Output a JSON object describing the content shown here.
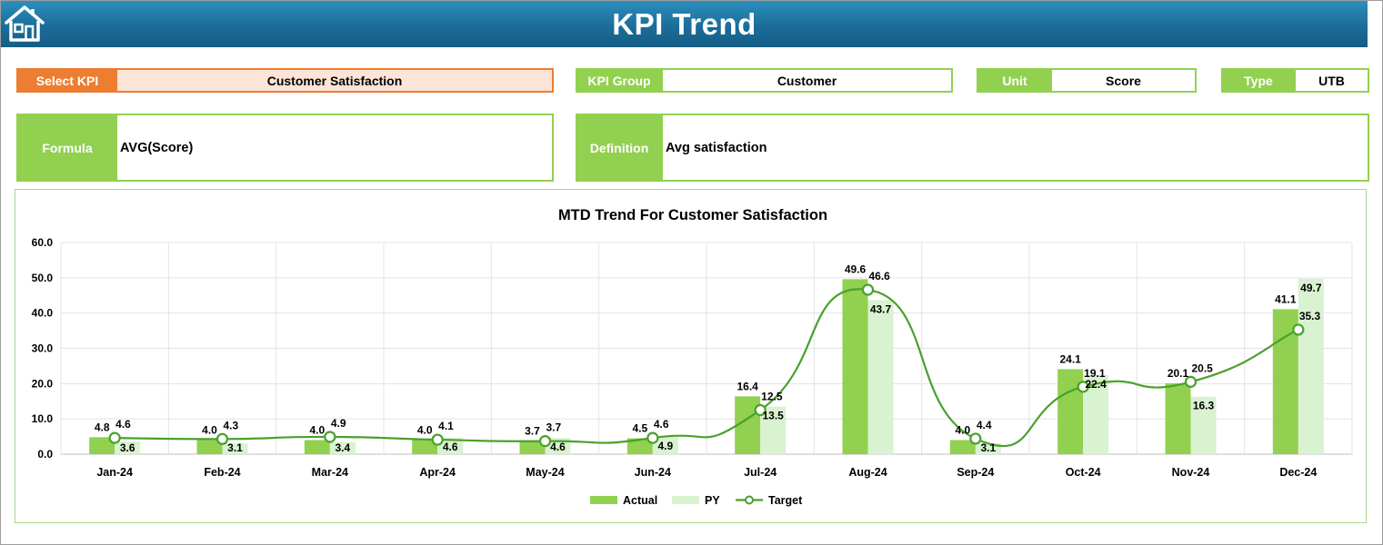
{
  "header": {
    "title": "KPI Trend",
    "home_icon": "home-icon"
  },
  "kpi_select": {
    "label": "Select KPI",
    "value": "Customer Satisfaction"
  },
  "kpi_group": {
    "label": "KPI Group",
    "value": "Customer"
  },
  "unit": {
    "label": "Unit",
    "value": "Score"
  },
  "type": {
    "label": "Type",
    "value": "UTB"
  },
  "formula": {
    "label": "Formula",
    "value": "AVG(Score)"
  },
  "definition": {
    "label": "Definition",
    "value": "Avg satisfaction"
  },
  "colors": {
    "header": "#1c6d99",
    "accent_green": "#92d050",
    "select_orange": "#ed7d31",
    "select_fill": "#fce4d6",
    "actual_bar": "#92d050",
    "py_bar": "#d9f2d0",
    "target_line": "#4aa02c"
  },
  "chart_data": {
    "type": "bar",
    "title": "MTD Trend For Customer Satisfaction",
    "categories": [
      "Jan-24",
      "Feb-24",
      "Mar-24",
      "Apr-24",
      "May-24",
      "Jun-24",
      "Jul-24",
      "Aug-24",
      "Sep-24",
      "Oct-24",
      "Nov-24",
      "Dec-24"
    ],
    "series": [
      {
        "name": "Actual",
        "kind": "bar",
        "values": [
          4.8,
          4.0,
          4.0,
          4.0,
          3.7,
          4.5,
          16.4,
          49.6,
          4.0,
          24.1,
          20.1,
          41.1
        ]
      },
      {
        "name": "PY",
        "kind": "bar",
        "values": [
          3.6,
          3.1,
          3.4,
          4.6,
          4.6,
          4.9,
          13.5,
          43.7,
          3.1,
          22.4,
          16.3,
          49.7
        ]
      },
      {
        "name": "Target",
        "kind": "line",
        "values": [
          4.6,
          4.3,
          4.9,
          4.1,
          3.7,
          4.6,
          12.5,
          46.6,
          4.4,
          19.1,
          20.5,
          35.3
        ]
      }
    ],
    "ylim": [
      0,
      60
    ],
    "yticks": [
      "0.0",
      "10.0",
      "20.0",
      "30.0",
      "40.0",
      "50.0",
      "60.0"
    ],
    "grid": true,
    "legend": "bottom",
    "xlabel": "",
    "ylabel": ""
  }
}
